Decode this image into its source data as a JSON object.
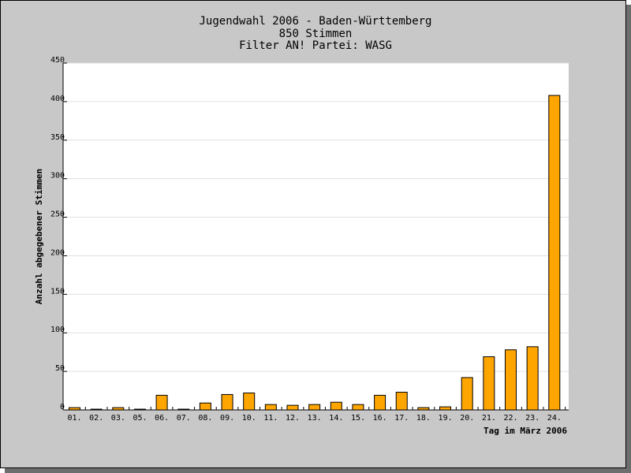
{
  "chart_data": {
    "type": "bar",
    "title": "Jugendwahl 2006 - Baden-Württemberg",
    "subtitle_lines": [
      "850 Stimmen",
      "Filter AN! Partei: WASG"
    ],
    "xlabel": "Tag im März 2006",
    "ylabel": "Anzahl abgegebener Stimmen",
    "categories": [
      "01.",
      "02.",
      "03.",
      "05.",
      "06.",
      "07.",
      "08.",
      "09.",
      "10.",
      "11.",
      "12.",
      "13.",
      "14.",
      "15.",
      "16.",
      "17.",
      "18.",
      "19.",
      "20.",
      "21.",
      "22.",
      "23.",
      "24."
    ],
    "values": [
      3,
      1,
      3,
      1,
      19,
      1,
      9,
      20,
      22,
      7,
      6,
      7,
      10,
      7,
      19,
      23,
      3,
      4,
      42,
      69,
      78,
      82,
      408
    ],
    "ylim": [
      0,
      450
    ],
    "yticks": [
      0,
      50,
      100,
      150,
      200,
      250,
      300,
      350,
      400,
      450
    ],
    "grid": true,
    "bar_color": "#ffa500",
    "background_color": "#c8c8c8",
    "plot_color": "#ffffff"
  }
}
